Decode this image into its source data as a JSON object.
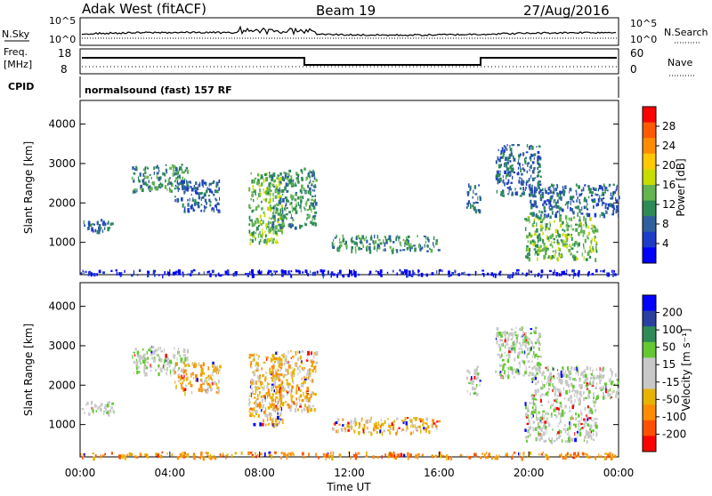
{
  "header": {
    "station": "Adak West (fitACF)",
    "beam": "Beam 19",
    "date": "27/Aug/2016"
  },
  "panels": {
    "nsky_label": "N.Sky",
    "nsearch_label": "N.Search",
    "freq_label_1": "Freq.",
    "freq_label_2": "[MHz]",
    "nave_label": "Nave",
    "cpid_label": "CPID",
    "cpid_text": "normalsound (fast) 157 RF",
    "noise_ticks": [
      "10^5",
      "10^0"
    ],
    "noise_right_ticks": [
      "10^5",
      "10^0"
    ],
    "freq_ticks": [
      "18",
      "8"
    ],
    "nave_ticks": [
      "60",
      "0"
    ]
  },
  "colorbars": {
    "power": {
      "label": "Power [dB]",
      "ticks": [
        "28",
        "24",
        "20",
        "16",
        "12",
        "8",
        "4"
      ],
      "colors": [
        "#ff0000",
        "#ff5a00",
        "#ff8c00",
        "#ffc800",
        "#c8dc00",
        "#64b450",
        "#2e8b57",
        "#2e5f9e",
        "#1e3cc8",
        "#0000ff"
      ]
    },
    "velocity": {
      "label": "Velocity [m s⁻¹]",
      "ticks": [
        "200",
        "100",
        "50",
        "15",
        "-15",
        "-50",
        "-100",
        "-200"
      ],
      "colors": [
        "#0000ff",
        "#2a40a0",
        "#2e8b57",
        "#64c832",
        "#c8c8c8",
        "#c8c8c8",
        "#e6b400",
        "#ff8c00",
        "#ff5000",
        "#ff0000"
      ]
    }
  },
  "chart_data": [
    {
      "type": "heatmap",
      "title": "Power",
      "xlabel": "",
      "ylabel": "Slant Range [km]",
      "xlim": [
        "00:00",
        "24:00"
      ],
      "ylim": [
        180,
        4600
      ],
      "yticks": [
        "4000",
        "3000",
        "2000",
        "1000"
      ],
      "xticks": [
        "00:00",
        "04:00",
        "08:00",
        "12:00",
        "16:00",
        "20:00",
        "00:00"
      ],
      "colorbar": "Power [dB]",
      "scatter_regions": [
        {
          "t_start": 0.0,
          "t_end": 1.5,
          "r_min": 1300,
          "r_max": 1600,
          "value_db": 8
        },
        {
          "t_start": 2.3,
          "t_end": 4.8,
          "r_min": 2300,
          "r_max": 3000,
          "value_db": 12
        },
        {
          "t_start": 4.2,
          "t_end": 6.2,
          "r_min": 1800,
          "r_max": 2600,
          "value_db": 8
        },
        {
          "t_start": 7.5,
          "t_end": 9.0,
          "r_min": 1000,
          "r_max": 2800,
          "value_db": 16
        },
        {
          "t_start": 8.5,
          "t_end": 10.5,
          "r_min": 1400,
          "r_max": 2900,
          "value_db": 12
        },
        {
          "t_start": 11.2,
          "t_end": 16.0,
          "r_min": 800,
          "r_max": 1200,
          "value_db": 12
        },
        {
          "t_start": 17.2,
          "t_end": 17.8,
          "r_min": 1800,
          "r_max": 2500,
          "value_db": 8
        },
        {
          "t_start": 18.5,
          "t_end": 20.5,
          "r_min": 2200,
          "r_max": 3500,
          "value_db": 8
        },
        {
          "t_start": 20.0,
          "t_end": 24.0,
          "r_min": 1700,
          "r_max": 2500,
          "value_db": 8
        },
        {
          "t_start": 19.8,
          "t_end": 23.0,
          "r_min": 600,
          "r_max": 1700,
          "value_db": 16
        },
        {
          "t_start": 0.0,
          "t_end": 24.0,
          "r_min": 180,
          "r_max": 320,
          "value_db": 4
        }
      ]
    },
    {
      "type": "heatmap",
      "title": "Velocity",
      "xlabel": "Time UT",
      "ylabel": "Slant Range [km]",
      "xlim": [
        "00:00",
        "24:00"
      ],
      "ylim": [
        180,
        4600
      ],
      "yticks": [
        "4000",
        "3000",
        "2000",
        "1000"
      ],
      "xticks": [
        "00:00",
        "04:00",
        "08:00",
        "12:00",
        "16:00",
        "20:00",
        "00:00"
      ],
      "colorbar": "Velocity [m s⁻¹]",
      "scatter_regions": [
        {
          "t_start": 0.0,
          "t_end": 1.5,
          "r_min": 1300,
          "r_max": 1600,
          "value_ms": 0
        },
        {
          "t_start": 2.3,
          "t_end": 4.8,
          "r_min": 2300,
          "r_max": 3000,
          "value_ms": 0
        },
        {
          "t_start": 4.2,
          "t_end": 6.2,
          "r_min": 1800,
          "r_max": 2600,
          "value_ms": -20
        },
        {
          "t_start": 7.5,
          "t_end": 9.0,
          "r_min": 1000,
          "r_max": 2800,
          "value_ms": -30
        },
        {
          "t_start": 8.5,
          "t_end": 10.5,
          "r_min": 1400,
          "r_max": 2900,
          "value_ms": -40
        },
        {
          "t_start": 11.2,
          "t_end": 16.0,
          "r_min": 800,
          "r_max": 1200,
          "value_ms": -40
        },
        {
          "t_start": 17.2,
          "t_end": 17.8,
          "r_min": 1800,
          "r_max": 2500,
          "value_ms": 0
        },
        {
          "t_start": 18.5,
          "t_end": 20.5,
          "r_min": 2200,
          "r_max": 3500,
          "value_ms": 0
        },
        {
          "t_start": 20.0,
          "t_end": 24.0,
          "r_min": 1700,
          "r_max": 2500,
          "value_ms": 0
        },
        {
          "t_start": 19.8,
          "t_end": 23.0,
          "r_min": 600,
          "r_max": 1700,
          "value_ms": 0
        },
        {
          "t_start": 0.0,
          "t_end": 24.0,
          "r_min": 180,
          "r_max": 320,
          "value_ms": -60
        }
      ]
    }
  ]
}
